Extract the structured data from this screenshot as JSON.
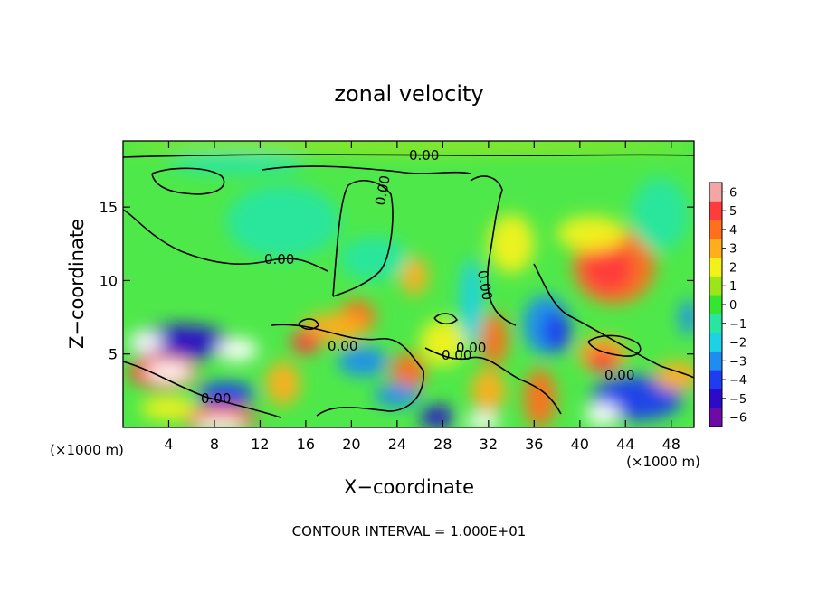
{
  "chart_data": {
    "type": "heatmap",
    "title": "zonal velocity",
    "xlabel": "X−coordinate",
    "ylabel": "Z−coordinate",
    "x_unit_left": "(×1000 m)",
    "x_unit_right": "(×1000 m)",
    "xlim": [
      0,
      50
    ],
    "ylim": [
      0,
      19.5
    ],
    "x_ticks": [
      4,
      8,
      12,
      16,
      20,
      24,
      28,
      32,
      36,
      40,
      44,
      48
    ],
    "y_ticks": [
      5,
      10,
      15
    ],
    "footer": "CONTOUR INTERVAL = 1.000E+01",
    "contour_labels": [
      "0.00",
      "0.00",
      "0.00",
      "0.00",
      "0.00",
      "0.00",
      "0.00",
      "0.00",
      "0.00"
    ],
    "colorbar": {
      "ticks": [
        "6",
        "5",
        "4",
        "3",
        "2",
        "1",
        "0",
        "−1",
        "−2",
        "−3",
        "−4",
        "−5",
        "−6"
      ],
      "colors": [
        "#f4a6a6",
        "#ff3c3c",
        "#ff6f1e",
        "#ffae1e",
        "#f2f21a",
        "#9be61a",
        "#32e632",
        "#28e6a0",
        "#1ed2e6",
        "#1e8cf0",
        "#1e3cf0",
        "#2d0ac8",
        "#6e0aa5"
      ]
    },
    "field": {
      "background": "#4fe84a",
      "blobs": [
        {
          "x": 43,
          "y": 11,
          "rx": 3.6,
          "ry": 2.6,
          "v": 4
        },
        {
          "x": 42.5,
          "y": 10.8,
          "rx": 2.2,
          "ry": 1.6,
          "v": 5
        },
        {
          "x": 41,
          "y": 13.2,
          "rx": 3.0,
          "ry": 1.2,
          "v": 2
        },
        {
          "x": 37,
          "y": 7.0,
          "rx": 2.0,
          "ry": 2.0,
          "v": -3
        },
        {
          "x": 38,
          "y": 6.5,
          "rx": 1.2,
          "ry": 1.4,
          "v": -4
        },
        {
          "x": 42,
          "y": 5.0,
          "rx": 2.2,
          "ry": 1.2,
          "v": 3
        },
        {
          "x": 42,
          "y": 4.6,
          "rx": 1.4,
          "ry": 0.8,
          "v": 5
        },
        {
          "x": 36.5,
          "y": 2.0,
          "rx": 1.4,
          "ry": 2.0,
          "v": 4
        },
        {
          "x": 45,
          "y": 2.0,
          "rx": 4.0,
          "ry": 1.5,
          "v": -4
        },
        {
          "x": 42,
          "y": 0.9,
          "rx": 1.5,
          "ry": 0.8,
          "v": -6
        },
        {
          "x": 48.5,
          "y": 3.5,
          "rx": 2.0,
          "ry": 1.0,
          "v": 3
        },
        {
          "x": 30.5,
          "y": 8.5,
          "rx": 1.0,
          "ry": 3.0,
          "v": -1.5
        },
        {
          "x": 34,
          "y": 12.5,
          "rx": 2.0,
          "ry": 2.0,
          "v": 2
        },
        {
          "x": 25.5,
          "y": 10.3,
          "rx": 1.2,
          "ry": 1.3,
          "v": 3.5
        },
        {
          "x": 20.5,
          "y": 7.5,
          "rx": 1.6,
          "ry": 1.2,
          "v": 4.5
        },
        {
          "x": 18.5,
          "y": 6.8,
          "rx": 2.8,
          "ry": 1.0,
          "v": 3
        },
        {
          "x": 16,
          "y": 5.8,
          "rx": 1.3,
          "ry": 0.8,
          "v": 5
        },
        {
          "x": 25,
          "y": 3.8,
          "rx": 1.5,
          "ry": 1.3,
          "v": 4
        },
        {
          "x": 28,
          "y": 5.8,
          "rx": 2.0,
          "ry": 1.6,
          "v": 2.5
        },
        {
          "x": 32.5,
          "y": 6.0,
          "rx": 1.2,
          "ry": 1.8,
          "v": 4
        },
        {
          "x": 32,
          "y": 2.5,
          "rx": 1.5,
          "ry": 1.5,
          "v": 3.5
        },
        {
          "x": 21,
          "y": 4.5,
          "rx": 2.2,
          "ry": 1.0,
          "v": -3
        },
        {
          "x": 24,
          "y": 2.2,
          "rx": 2.0,
          "ry": 0.8,
          "v": -3
        },
        {
          "x": 5,
          "y": 5.8,
          "rx": 4.5,
          "ry": 1.2,
          "v": -5
        },
        {
          "x": 2,
          "y": 5.8,
          "rx": 1.5,
          "ry": 0.8,
          "v": -6
        },
        {
          "x": 10,
          "y": 5.3,
          "rx": 1.8,
          "ry": 0.8,
          "v": -6
        },
        {
          "x": 3.5,
          "y": 3.8,
          "rx": 3.0,
          "ry": 1.2,
          "v": 5
        },
        {
          "x": 4,
          "y": 3.8,
          "rx": 2.0,
          "ry": 0.7,
          "v": 6
        },
        {
          "x": 8.5,
          "y": 0.6,
          "rx": 3.2,
          "ry": 0.9,
          "v": 5
        },
        {
          "x": 8.5,
          "y": 0.2,
          "rx": 2.2,
          "ry": 0.5,
          "v": 6
        },
        {
          "x": 9,
          "y": 2.3,
          "rx": 2.5,
          "ry": 0.8,
          "v": -4
        },
        {
          "x": 14,
          "y": 3.0,
          "rx": 1.5,
          "ry": 1.5,
          "v": 3
        },
        {
          "x": 4,
          "y": 1.3,
          "rx": 2.5,
          "ry": 0.8,
          "v": 2
        },
        {
          "x": 27.5,
          "y": 0.7,
          "rx": 1.5,
          "ry": 0.8,
          "v": -5
        },
        {
          "x": 31.5,
          "y": 0.4,
          "rx": 1.5,
          "ry": 0.6,
          "v": -6
        },
        {
          "x": 14,
          "y": 14.0,
          "rx": 5.0,
          "ry": 2.5,
          "v": -1.2
        },
        {
          "x": 22,
          "y": 11.5,
          "rx": 3.0,
          "ry": 1.5,
          "v": -1.0
        },
        {
          "x": 25,
          "y": 19.2,
          "rx": 25.0,
          "ry": 0.5,
          "v": 1.5
        },
        {
          "x": 10,
          "y": 18.0,
          "rx": 6.0,
          "ry": 0.8,
          "v": -0.8
        },
        {
          "x": 47,
          "y": 14.5,
          "rx": 2.5,
          "ry": 2.5,
          "v": -0.8
        },
        {
          "x": 49.5,
          "y": 7.5,
          "rx": 0.8,
          "ry": 1.2,
          "v": -3
        }
      ]
    }
  }
}
